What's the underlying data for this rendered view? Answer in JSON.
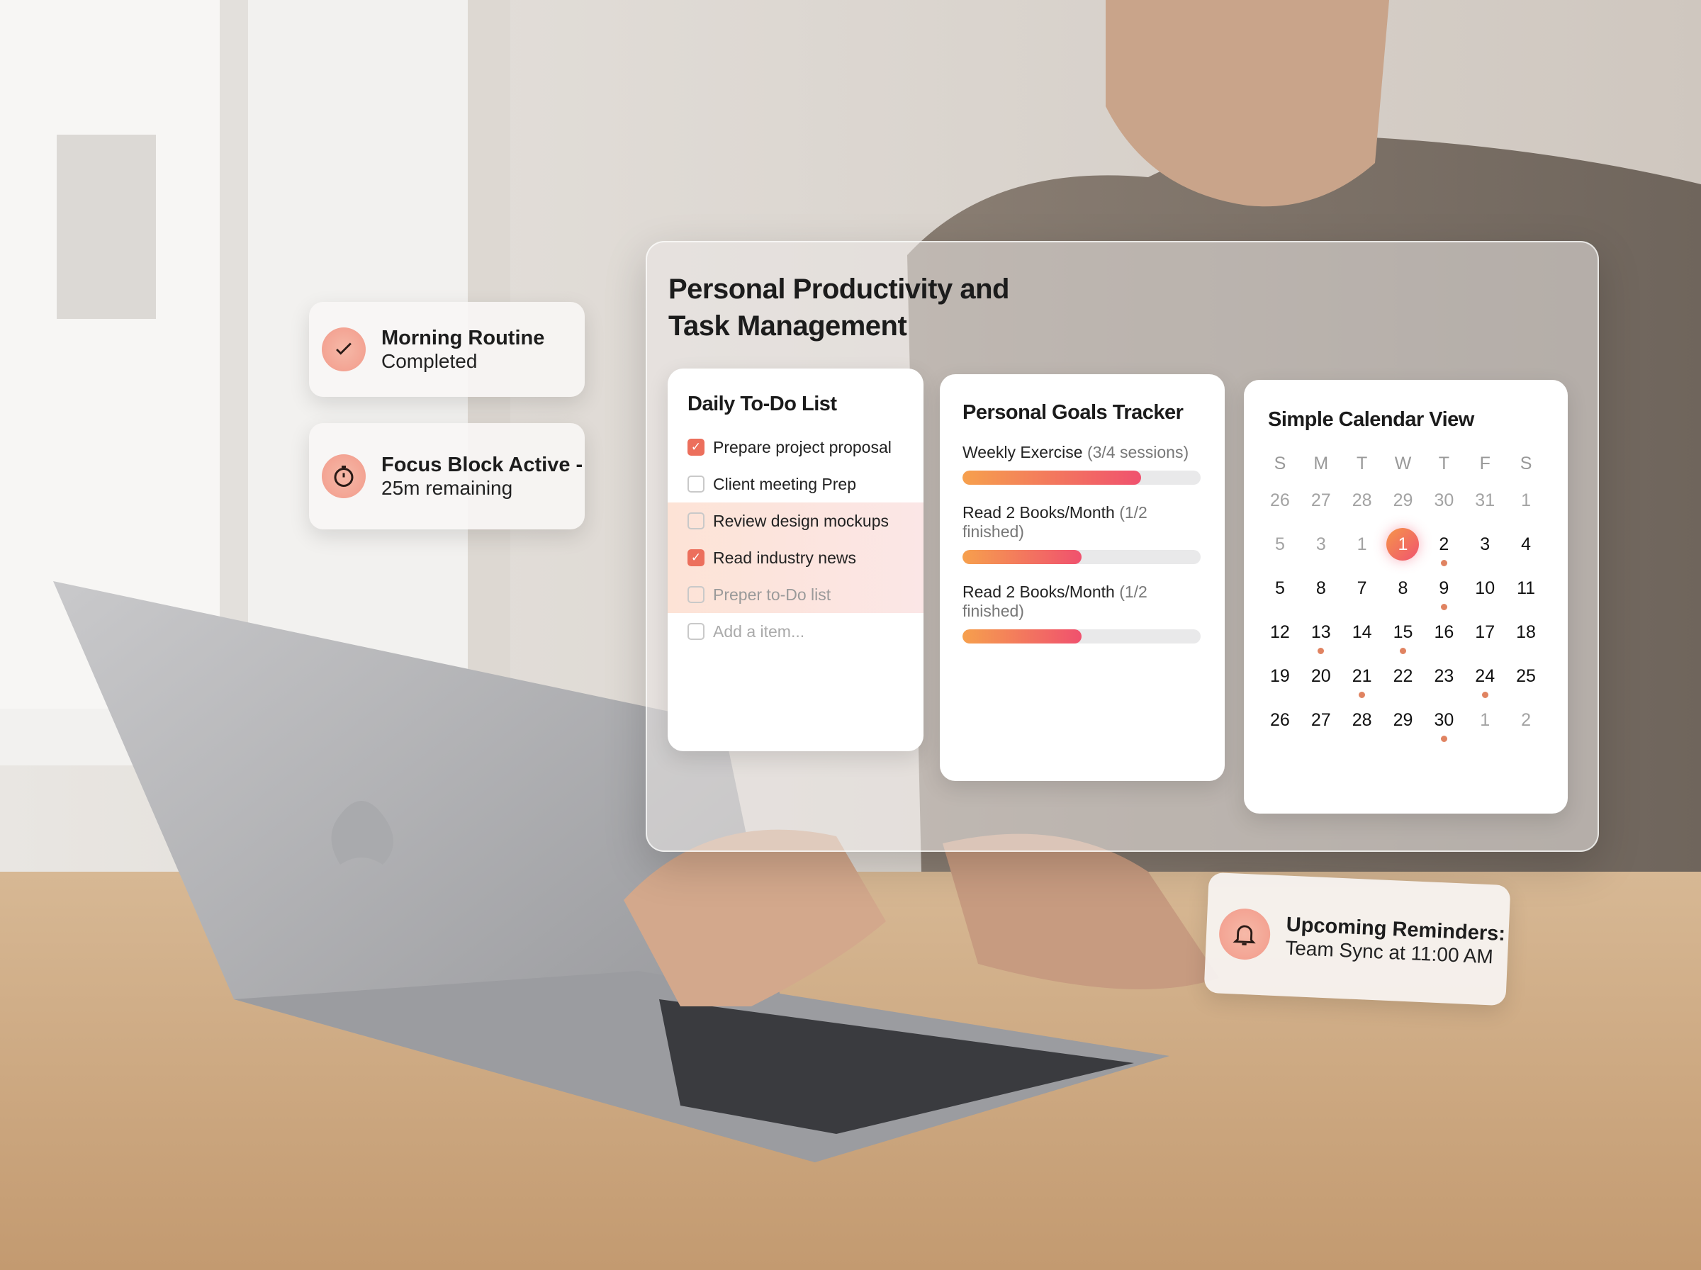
{
  "panel": {
    "title_line1": "Personal Productivity and",
    "title_line2": "Task Management"
  },
  "todo": {
    "title": "Daily To-Do List",
    "items": [
      {
        "label": "Prepare project proposal",
        "checked": true
      },
      {
        "label": "Client meeting Prep",
        "checked": false
      },
      {
        "label": "Review design mockups",
        "checked": false
      },
      {
        "label": "Read industry news",
        "checked": true
      },
      {
        "label": "Preper to-Do list",
        "checked": false
      }
    ],
    "add_placeholder": "Add a item..."
  },
  "goals": {
    "title": "Personal Goals Tracker",
    "items": [
      {
        "name": "Weekly Exercise",
        "detail": "(3/4 sessions)",
        "progress": 0.75
      },
      {
        "name": "Read 2 Books/Month",
        "detail": "(1/2 finished)",
        "progress": 0.5
      },
      {
        "name": "Read 2 Books/Month",
        "detail": "(1/2 finished)",
        "progress": 0.5
      }
    ]
  },
  "calendar": {
    "title": "Simple Calendar View",
    "weekdays": [
      "S",
      "M",
      "T",
      "W",
      "T",
      "F",
      "S"
    ],
    "weeks": [
      [
        "26",
        "27",
        "28",
        "29",
        "30",
        "31",
        "1"
      ],
      [
        "5",
        "3",
        "1",
        "1",
        "2",
        "3",
        "4"
      ],
      [
        "5",
        "8",
        "7",
        "8",
        "9",
        "10",
        "11"
      ],
      [
        "12",
        "13",
        "14",
        "15",
        "16",
        "17",
        "18"
      ],
      [
        "19",
        "20",
        "21",
        "22",
        "23",
        "24",
        "25"
      ],
      [
        "26",
        "27",
        "28",
        "29",
        "30",
        "1",
        "2"
      ]
    ],
    "muted": [
      "0-0",
      "0-1",
      "0-2",
      "0-3",
      "0-4",
      "0-5",
      "0-6",
      "1-0",
      "1-1",
      "1-2",
      "5-5",
      "5-6"
    ],
    "today": "1-3",
    "event_dots": [
      "1-4",
      "2-4",
      "3-1",
      "3-3",
      "4-2",
      "4-5",
      "5-4"
    ]
  },
  "toasts": {
    "morning": {
      "line1": "Morning Routine",
      "line2": "Completed",
      "icon": "check-icon"
    },
    "focus": {
      "line1": "Focus Block Active -",
      "line2": "25m remaining",
      "icon": "stopwatch-icon"
    },
    "reminder": {
      "line1": "Upcoming Reminders:",
      "line2": "Team Sync at 11:00 AM",
      "icon": "bell-icon"
    }
  },
  "colors": {
    "accent_orange": "#f6a04d",
    "accent_pink": "#f0516e",
    "check": "#ec6f5c"
  }
}
